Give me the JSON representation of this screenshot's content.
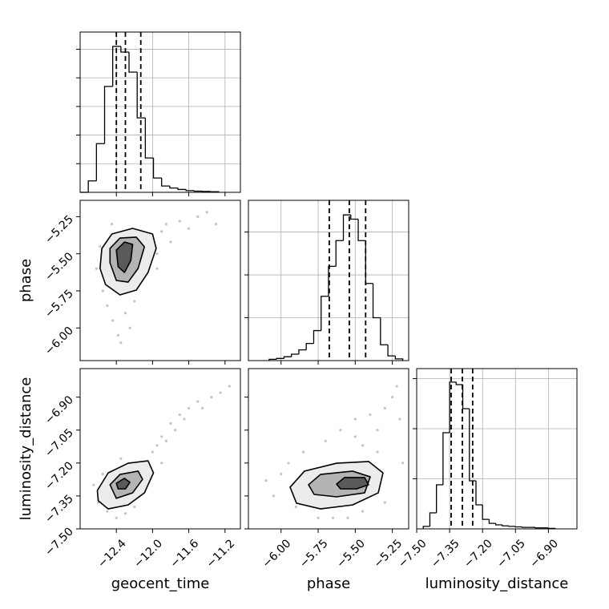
{
  "chart_data": [
    {
      "type": "histogram",
      "xlim": [
        -12.8,
        -11.03
      ],
      "ylim": [
        0,
        5.6
      ],
      "grid": true,
      "xticks": [
        -12.4,
        -12.0,
        -11.6,
        -11.2
      ],
      "yticks": [
        1,
        2,
        3,
        4,
        5
      ],
      "bins": [
        -12.8,
        -12.71,
        -12.62,
        -12.53,
        -12.44,
        -12.35,
        -12.26,
        -12.17,
        -12.08,
        -11.99,
        -11.9,
        -11.81,
        -11.72,
        -11.63,
        -11.54,
        -11.45,
        -11.36,
        -11.27
      ],
      "counts": [
        0,
        0.4,
        1.7,
        3.7,
        5.1,
        4.9,
        4.2,
        2.6,
        1.2,
        0.5,
        0.22,
        0.15,
        0.1,
        0.06,
        0.04,
        0.03,
        0.02
      ],
      "quantiles": [
        -12.4,
        -12.3,
        -12.13
      ],
      "color": "#000000"
    },
    {
      "type": "contour",
      "xlim": [
        -12.8,
        -11.03
      ],
      "ylim": [
        -6.22,
        -5.14
      ],
      "xticks": [
        -12.4,
        -12.0,
        -11.6,
        -11.2
      ],
      "yticks": [
        {
          "value": -6.0,
          "label": "−6.00"
        },
        {
          "value": -5.75,
          "label": "−5.75"
        },
        {
          "value": -5.5,
          "label": "−5.50"
        },
        {
          "value": -5.25,
          "label": "−5.25"
        }
      ],
      "ylabel": "phase",
      "x": [
        -12.62,
        -12.55,
        -12.5,
        -12.44,
        -12.38,
        -12.3,
        -12.2,
        -12.15,
        -12.08,
        -12.0,
        -11.95,
        -11.9,
        -11.85,
        -11.8,
        -11.7,
        -11.6,
        -11.5,
        -11.4,
        -11.3,
        -12.58,
        -12.35,
        -12.25,
        -12.1,
        -12.45,
        -11.95
      ],
      "y": [
        -5.6,
        -5.75,
        -5.85,
        -5.95,
        -6.05,
        -5.9,
        -5.82,
        -5.7,
        -5.45,
        -5.4,
        -5.5,
        -5.35,
        -5.3,
        -5.42,
        -5.28,
        -5.33,
        -5.25,
        -5.22,
        -5.3,
        -5.45,
        -6.1,
        -6.0,
        -5.6,
        -5.3,
        -5.6
      ],
      "contours": [
        {
          "x": [
            -12.56,
            -12.45,
            -12.22,
            -12.0,
            -11.96,
            -12.05,
            -12.18,
            -12.36,
            -12.52,
            -12.58
          ],
          "y": [
            -5.464,
            -5.367,
            -5.329,
            -5.367,
            -5.464,
            -5.626,
            -5.745,
            -5.777,
            -5.707,
            -5.599
          ]
        },
        {
          "x": [
            -12.47,
            -12.36,
            -12.18,
            -12.09,
            -12.16,
            -12.27,
            -12.4,
            -12.47
          ],
          "y": [
            -5.464,
            -5.394,
            -5.388,
            -5.453,
            -5.599,
            -5.691,
            -5.68,
            -5.561
          ]
        },
        {
          "x": [
            -12.4,
            -12.31,
            -12.22,
            -12.24,
            -12.31,
            -12.38
          ],
          "y": [
            -5.475,
            -5.421,
            -5.437,
            -5.545,
            -5.626,
            -5.588
          ]
        }
      ]
    },
    {
      "type": "histogram",
      "xlim": [
        -6.22,
        -5.14
      ],
      "ylim": [
        0,
        3.74
      ],
      "grid": true,
      "xticks": [
        -6.0,
        -5.75,
        -5.5,
        -5.25
      ],
      "yticks": [
        1,
        2,
        3
      ],
      "bins": [
        -6.08,
        -6.03,
        -5.98,
        -5.93,
        -5.88,
        -5.83,
        -5.78,
        -5.73,
        -5.68,
        -5.63,
        -5.58,
        -5.53,
        -5.48,
        -5.43,
        -5.38,
        -5.33,
        -5.28,
        -5.23,
        -5.18
      ],
      "counts": [
        0.03,
        0.05,
        0.09,
        0.15,
        0.25,
        0.4,
        0.7,
        1.5,
        2.2,
        2.8,
        3.4,
        3.3,
        2.8,
        1.8,
        1.0,
        0.37,
        0.11,
        0.04
      ],
      "quantiles": [
        -5.675,
        -5.54,
        -5.43
      ],
      "color": "#000000"
    },
    {
      "type": "contour",
      "xlim": [
        -12.8,
        -11.03
      ],
      "ylim": [
        -7.5,
        -6.77
      ],
      "xticks": [
        {
          "value": -12.4,
          "label": "−12.4"
        },
        {
          "value": -12.0,
          "label": "−12.0"
        },
        {
          "value": -11.6,
          "label": "−11.6"
        },
        {
          "value": -11.2,
          "label": "−11.2"
        }
      ],
      "yticks": [
        {
          "value": -7.5,
          "label": "−7.50"
        },
        {
          "value": -7.35,
          "label": "−7.35"
        },
        {
          "value": -7.2,
          "label": "−7.20"
        },
        {
          "value": -7.05,
          "label": "−7.05"
        },
        {
          "value": -6.9,
          "label": "−6.90"
        }
      ],
      "xlabel": "geocent_time",
      "ylabel": "luminosity_distance",
      "x": [
        -12.65,
        -12.6,
        -12.5,
        -12.4,
        -12.3,
        -12.2,
        -12.1,
        -12.0,
        -11.95,
        -11.9,
        -11.85,
        -11.8,
        -11.75,
        -11.7,
        -11.65,
        -11.6,
        -11.5,
        -11.45,
        -11.35,
        -11.25,
        -11.15,
        -12.55,
        -12.35,
        -12.15,
        -11.9
      ],
      "y": [
        -7.3,
        -7.38,
        -7.42,
        -7.45,
        -7.43,
        -7.4,
        -7.2,
        -7.15,
        -7.12,
        -7.08,
        -7.1,
        -7.02,
        -7.05,
        -6.98,
        -7.0,
        -6.95,
        -6.92,
        -6.95,
        -6.9,
        -6.88,
        -6.85,
        -7.25,
        -7.18,
        -7.3,
        -7.2
      ],
      "contours": [
        {
          "x": [
            -12.61,
            -12.49,
            -12.27,
            -12.05,
            -11.99,
            -12.09,
            -12.27,
            -12.49,
            -12.6
          ],
          "y": [
            -7.325,
            -7.245,
            -7.201,
            -7.19,
            -7.245,
            -7.336,
            -7.391,
            -7.409,
            -7.372
          ]
        },
        {
          "x": [
            -12.47,
            -12.36,
            -12.16,
            -12.11,
            -12.22,
            -12.4
          ],
          "y": [
            -7.299,
            -7.252,
            -7.237,
            -7.274,
            -7.336,
            -7.361
          ]
        },
        {
          "x": [
            -12.4,
            -12.31,
            -12.25,
            -12.3,
            -12.38
          ],
          "y": [
            -7.292,
            -7.27,
            -7.288,
            -7.318,
            -7.318
          ]
        }
      ]
    },
    {
      "type": "contour",
      "xlim": [
        -6.22,
        -5.14
      ],
      "ylim": [
        -7.5,
        -6.77
      ],
      "xticks": [
        {
          "value": -6.0,
          "label": "−6.00"
        },
        {
          "value": -5.75,
          "label": "−5.75"
        },
        {
          "value": -5.5,
          "label": "−5.50"
        },
        {
          "value": -5.25,
          "label": "−5.25"
        }
      ],
      "yticks": [
        -7.5,
        -7.35,
        -7.2,
        -7.05,
        -6.9
      ],
      "xlabel": "phase",
      "x": [
        -6.1,
        -6.05,
        -5.95,
        -5.9,
        -5.85,
        -5.75,
        -5.7,
        -5.6,
        -5.55,
        -5.5,
        -5.45,
        -5.4,
        -5.35,
        -5.3,
        -5.25,
        -5.2,
        -5.18,
        -6.0,
        -5.8,
        -5.65,
        -5.45,
        -5.3,
        -5.22,
        -5.5,
        -5.35
      ],
      "y": [
        -7.28,
        -7.35,
        -7.2,
        -7.4,
        -7.15,
        -7.45,
        -7.1,
        -7.05,
        -7.45,
        -7.0,
        -7.12,
        -6.98,
        -7.05,
        -6.95,
        -6.9,
        -7.0,
        -7.2,
        -7.25,
        -7.3,
        -7.45,
        -7.42,
        -7.38,
        -6.85,
        -7.08,
        -7.15
      ],
      "contours": [
        {
          "x": [
            -5.939,
            -5.842,
            -5.626,
            -5.41,
            -5.313,
            -5.345,
            -5.518,
            -5.734,
            -5.896
          ],
          "y": [
            -7.31,
            -7.237,
            -7.201,
            -7.193,
            -7.245,
            -7.336,
            -7.391,
            -7.409,
            -7.383
          ]
        },
        {
          "x": [
            -5.815,
            -5.734,
            -5.518,
            -5.399,
            -5.437,
            -5.626,
            -5.777
          ],
          "y": [
            -7.299,
            -7.252,
            -7.237,
            -7.263,
            -7.336,
            -7.354,
            -7.343
          ]
        },
        {
          "x": [
            -5.626,
            -5.572,
            -5.437,
            -5.41,
            -5.491,
            -5.599
          ],
          "y": [
            -7.296,
            -7.266,
            -7.266,
            -7.299,
            -7.318,
            -7.318
          ]
        }
      ]
    },
    {
      "type": "histogram",
      "xlim": [
        -7.5,
        -6.77
      ],
      "ylim": [
        0,
        3.2
      ],
      "grid": true,
      "xticks": [
        {
          "value": -7.5,
          "label": "−7.50"
        },
        {
          "value": -7.35,
          "label": "−7.35"
        },
        {
          "value": -7.2,
          "label": "−7.20"
        },
        {
          "value": -7.05,
          "label": "−7.05"
        },
        {
          "value": -6.9,
          "label": "−6.90"
        }
      ],
      "yticks": [
        1,
        2,
        3
      ],
      "xlabel": "luminosity_distance",
      "bins": [
        -7.47,
        -7.44,
        -7.41,
        -7.38,
        -7.35,
        -7.32,
        -7.29,
        -7.26,
        -7.23,
        -7.2,
        -7.17,
        -7.14,
        -7.11,
        -7.08,
        -7.05,
        -7.02,
        -6.99,
        -6.96,
        -6.93,
        -6.9,
        -6.87
      ],
      "counts": [
        0.05,
        0.32,
        0.88,
        1.92,
        2.93,
        2.88,
        2.4,
        0.96,
        0.48,
        0.19,
        0.11,
        0.08,
        0.06,
        0.05,
        0.04,
        0.03,
        0.03,
        0.02,
        0.02,
        0.01
      ],
      "quantiles": [
        -7.343,
        -7.292,
        -7.245
      ],
      "color": "#000000"
    }
  ]
}
